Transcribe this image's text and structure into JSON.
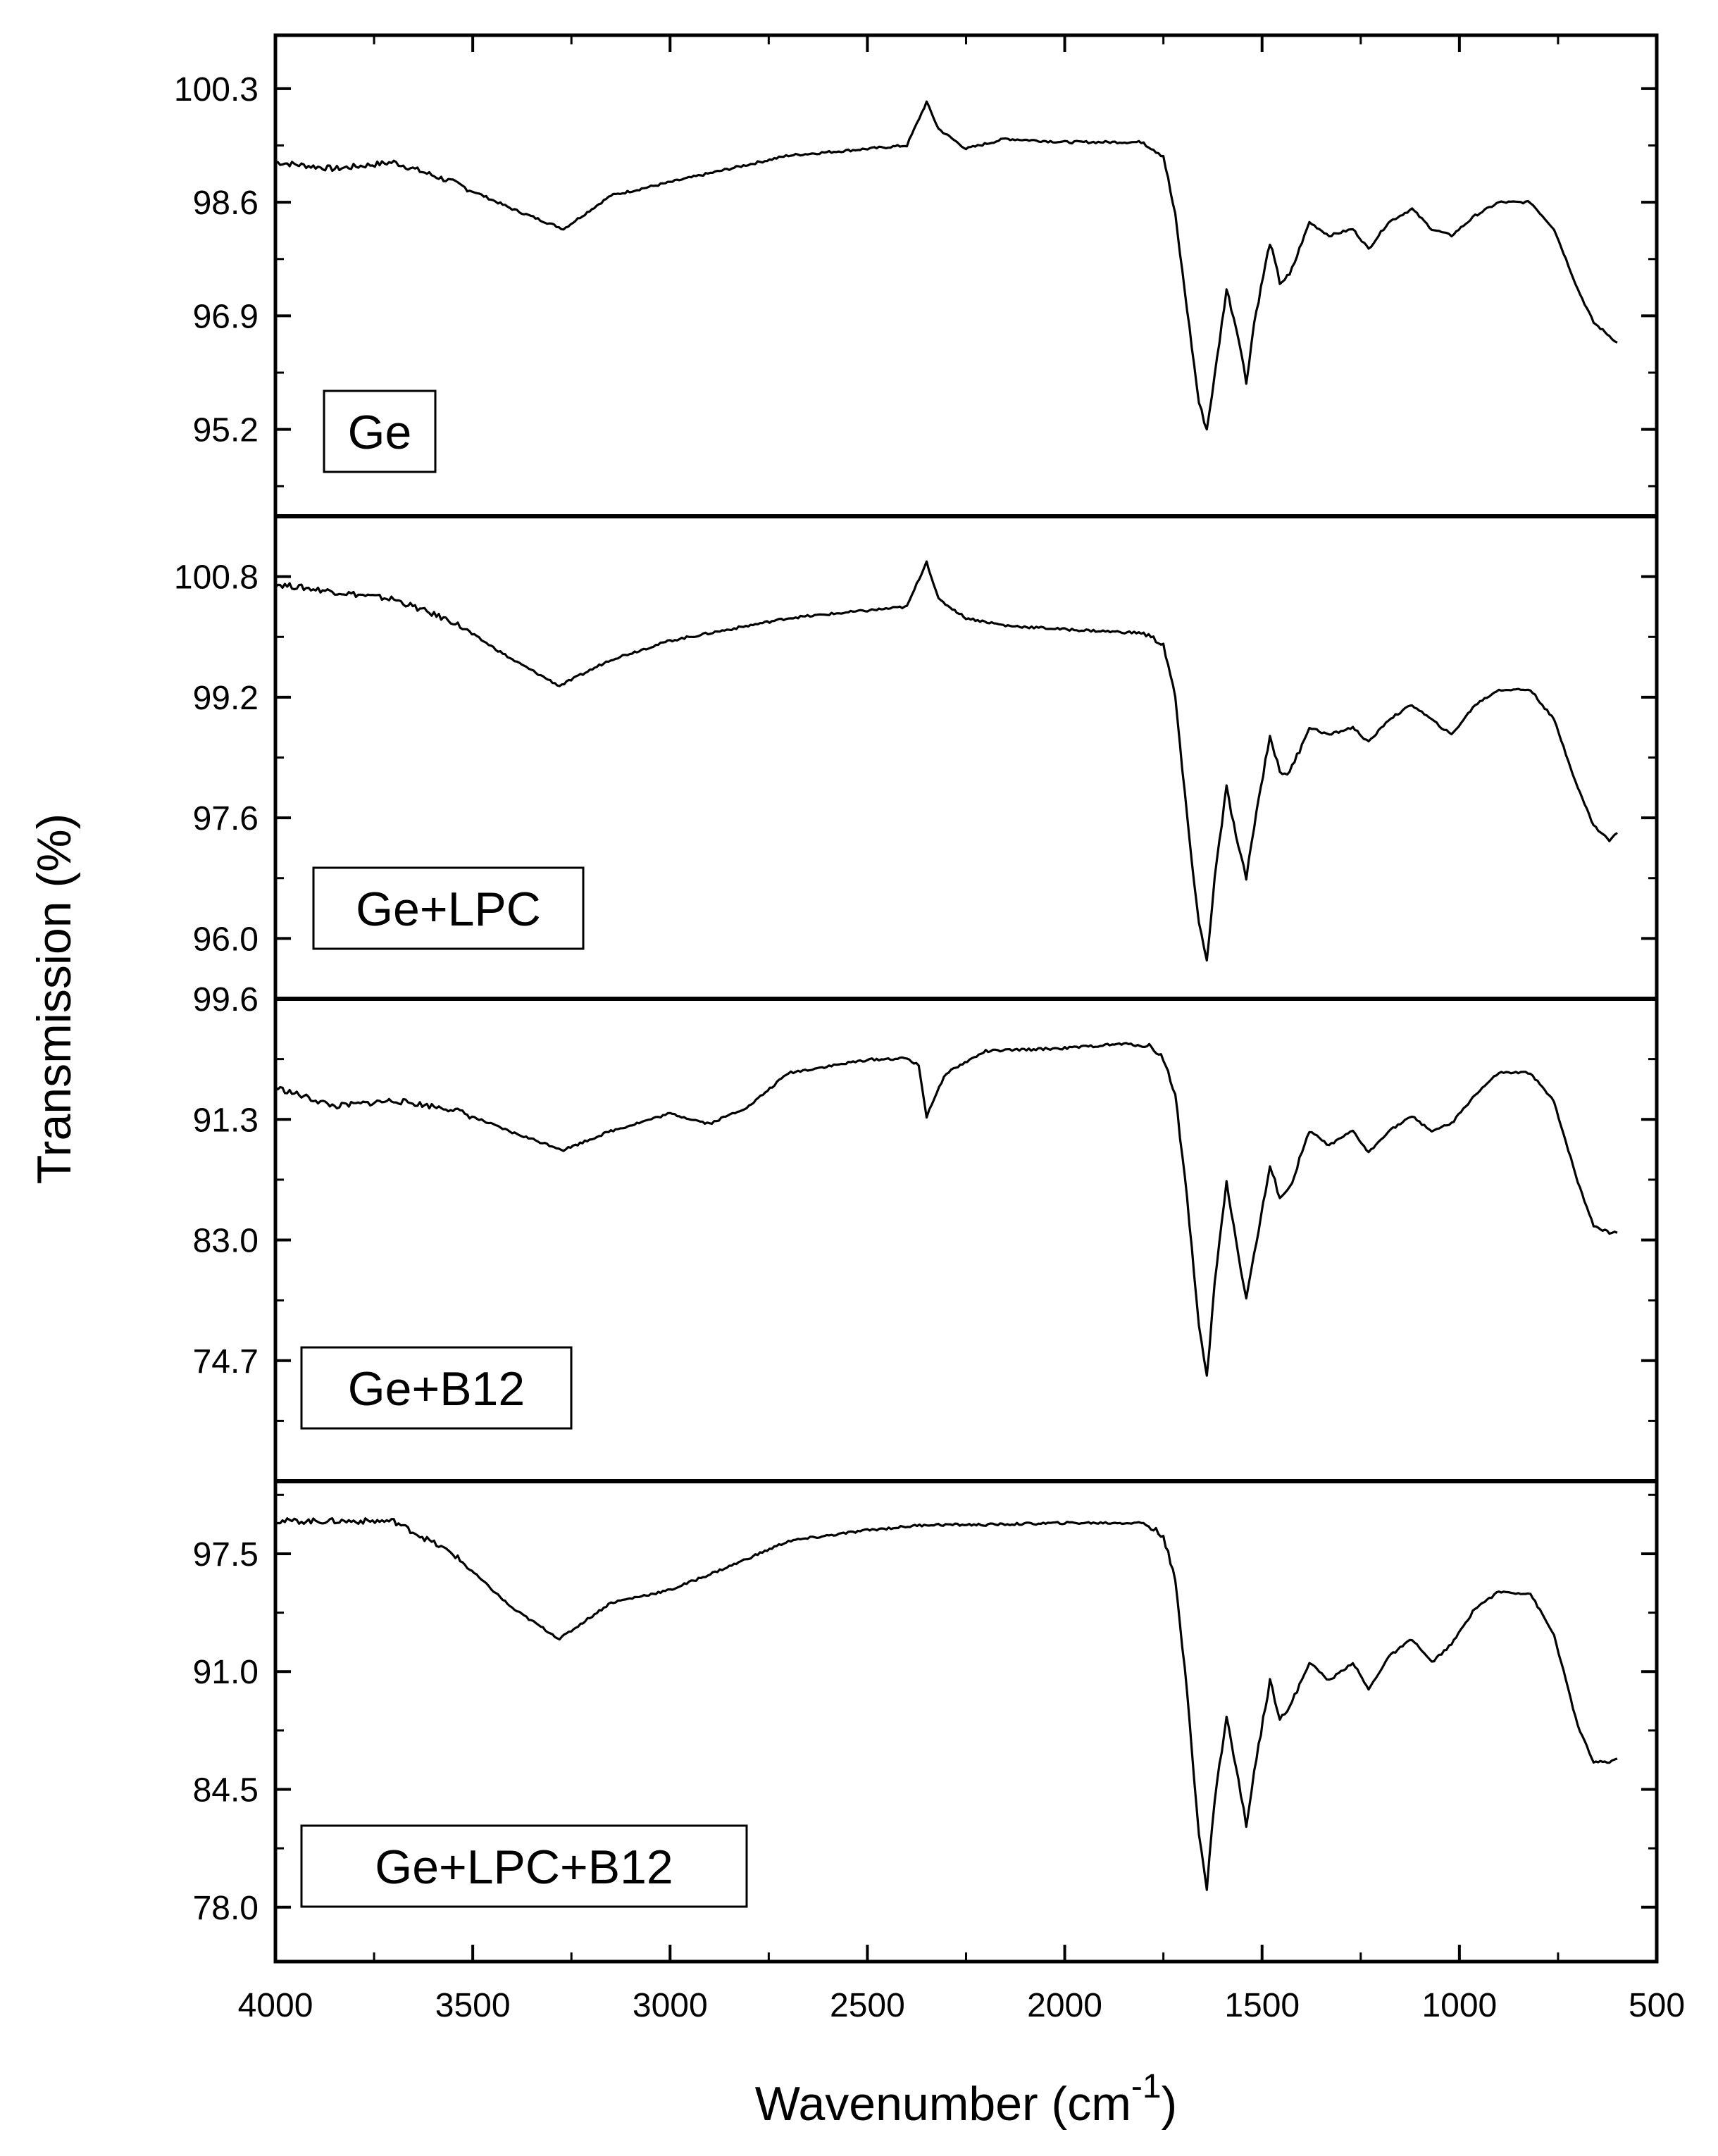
{
  "chart_data": {
    "type": "line",
    "xlabel": "Wavenumber (cm",
    "xlabel_sup": "-1",
    "xlabel_close": ")",
    "ylabel": "Transmission (%)",
    "xlim": [
      4000,
      500
    ],
    "x_ticks": [
      4000,
      3500,
      3000,
      2500,
      2000,
      1500,
      1000,
      500
    ],
    "grid": false,
    "panels": [
      {
        "label": "Ge",
        "ylim": [
          93.9,
          101.1
        ],
        "y_ticks": [
          "100.3",
          "98.6",
          "96.9",
          "95.2"
        ],
        "y_tick_values": [
          100.3,
          98.6,
          96.9,
          95.2
        ],
        "points": [
          [
            4000,
            99.2
          ],
          [
            3850,
            99.1
          ],
          [
            3700,
            99.2
          ],
          [
            3550,
            98.9
          ],
          [
            3400,
            98.5
          ],
          [
            3270,
            98.2
          ],
          [
            3150,
            98.7
          ],
          [
            3000,
            98.9
          ],
          [
            2850,
            99.1
          ],
          [
            2700,
            99.3
          ],
          [
            2500,
            99.4
          ],
          [
            2400,
            99.45
          ],
          [
            2350,
            100.1
          ],
          [
            2320,
            99.7
          ],
          [
            2250,
            99.4
          ],
          [
            2150,
            99.55
          ],
          [
            2000,
            99.5
          ],
          [
            1800,
            99.5
          ],
          [
            1750,
            99.3
          ],
          [
            1720,
            98.4
          ],
          [
            1690,
            97.0
          ],
          [
            1660,
            95.6
          ],
          [
            1640,
            95.2
          ],
          [
            1620,
            96.0
          ],
          [
            1590,
            97.3
          ],
          [
            1560,
            96.6
          ],
          [
            1540,
            95.9
          ],
          [
            1520,
            96.8
          ],
          [
            1480,
            98.0
          ],
          [
            1455,
            97.4
          ],
          [
            1430,
            97.5
          ],
          [
            1380,
            98.3
          ],
          [
            1330,
            98.1
          ],
          [
            1270,
            98.2
          ],
          [
            1230,
            97.9
          ],
          [
            1180,
            98.3
          ],
          [
            1120,
            98.5
          ],
          [
            1070,
            98.2
          ],
          [
            1020,
            98.1
          ],
          [
            960,
            98.4
          ],
          [
            900,
            98.6
          ],
          [
            820,
            98.6
          ],
          [
            760,
            98.2
          ],
          [
            700,
            97.3
          ],
          [
            660,
            96.8
          ],
          [
            620,
            96.6
          ],
          [
            600,
            96.5
          ]
        ]
      },
      {
        "label": "Ge+LPC",
        "ylim": [
          95.2,
          101.6
        ],
        "y_ticks": [
          "100.8",
          "99.2",
          "97.6",
          "96.0"
        ],
        "y_tick_values": [
          100.8,
          99.2,
          97.6,
          96.0
        ],
        "points": [
          [
            4000,
            100.7
          ],
          [
            3850,
            100.6
          ],
          [
            3700,
            100.5
          ],
          [
            3550,
            100.2
          ],
          [
            3400,
            99.7
          ],
          [
            3280,
            99.35
          ],
          [
            3150,
            99.7
          ],
          [
            3000,
            99.95
          ],
          [
            2850,
            100.1
          ],
          [
            2700,
            100.25
          ],
          [
            2500,
            100.35
          ],
          [
            2400,
            100.4
          ],
          [
            2350,
            101.0
          ],
          [
            2320,
            100.5
          ],
          [
            2250,
            100.25
          ],
          [
            2150,
            100.15
          ],
          [
            2000,
            100.1
          ],
          [
            1800,
            100.05
          ],
          [
            1750,
            99.9
          ],
          [
            1720,
            99.2
          ],
          [
            1690,
            97.6
          ],
          [
            1660,
            96.2
          ],
          [
            1640,
            95.7
          ],
          [
            1620,
            96.8
          ],
          [
            1590,
            98.0
          ],
          [
            1560,
            97.2
          ],
          [
            1540,
            96.8
          ],
          [
            1520,
            97.5
          ],
          [
            1480,
            98.7
          ],
          [
            1455,
            98.2
          ],
          [
            1430,
            98.2
          ],
          [
            1380,
            98.8
          ],
          [
            1330,
            98.7
          ],
          [
            1270,
            98.8
          ],
          [
            1230,
            98.6
          ],
          [
            1180,
            98.9
          ],
          [
            1120,
            99.1
          ],
          [
            1070,
            98.9
          ],
          [
            1020,
            98.7
          ],
          [
            960,
            99.1
          ],
          [
            900,
            99.3
          ],
          [
            820,
            99.3
          ],
          [
            760,
            98.9
          ],
          [
            700,
            98.0
          ],
          [
            660,
            97.5
          ],
          [
            620,
            97.3
          ],
          [
            600,
            97.4
          ]
        ]
      },
      {
        "label": "Ge+B12",
        "ylim": [
          66.4,
          99.6
        ],
        "y_ticks": [
          "99.6",
          "91.3",
          "83.0",
          "74.7"
        ],
        "y_tick_values": [
          99.6,
          91.3,
          83.0,
          74.7
        ],
        "points": [
          [
            4000,
            93.5
          ],
          [
            3850,
            92.2
          ],
          [
            3700,
            92.6
          ],
          [
            3550,
            92.0
          ],
          [
            3400,
            90.4
          ],
          [
            3270,
            89.2
          ],
          [
            3150,
            90.5
          ],
          [
            3000,
            91.7
          ],
          [
            2900,
            91.0
          ],
          [
            2800,
            92.2
          ],
          [
            2700,
            94.5
          ],
          [
            2500,
            95.4
          ],
          [
            2400,
            95.5
          ],
          [
            2370,
            95.0
          ],
          [
            2350,
            91.5
          ],
          [
            2330,
            92.8
          ],
          [
            2300,
            94.5
          ],
          [
            2200,
            96.0
          ],
          [
            2000,
            96.2
          ],
          [
            1850,
            96.5
          ],
          [
            1780,
            96.3
          ],
          [
            1750,
            95.5
          ],
          [
            1720,
            93.0
          ],
          [
            1690,
            86.0
          ],
          [
            1660,
            77.0
          ],
          [
            1640,
            73.5
          ],
          [
            1620,
            80.0
          ],
          [
            1590,
            87.0
          ],
          [
            1560,
            82.0
          ],
          [
            1540,
            79.0
          ],
          [
            1520,
            82.0
          ],
          [
            1480,
            88.0
          ],
          [
            1455,
            86.0
          ],
          [
            1430,
            86.5
          ],
          [
            1380,
            90.5
          ],
          [
            1330,
            89.5
          ],
          [
            1270,
            90.5
          ],
          [
            1230,
            89.0
          ],
          [
            1180,
            90.5
          ],
          [
            1120,
            91.5
          ],
          [
            1070,
            90.5
          ],
          [
            1020,
            91.0
          ],
          [
            960,
            93.0
          ],
          [
            900,
            94.5
          ],
          [
            820,
            94.5
          ],
          [
            760,
            92.5
          ],
          [
            700,
            87.0
          ],
          [
            660,
            84.0
          ],
          [
            620,
            83.5
          ],
          [
            600,
            83.5
          ]
        ]
      },
      {
        "label": "Ge+LPC+B12",
        "ylim": [
          75.0,
          101.5
        ],
        "y_ticks": [
          "97.5",
          "91.0",
          "84.5",
          "78.0"
        ],
        "y_tick_values": [
          97.5,
          91.0,
          84.5,
          78.0
        ],
        "points": [
          [
            4000,
            99.3
          ],
          [
            3850,
            99.3
          ],
          [
            3700,
            99.3
          ],
          [
            3550,
            97.5
          ],
          [
            3400,
            94.5
          ],
          [
            3280,
            92.8
          ],
          [
            3150,
            94.8
          ],
          [
            3000,
            95.5
          ],
          [
            2850,
            96.8
          ],
          [
            2700,
            98.2
          ],
          [
            2500,
            98.8
          ],
          [
            2350,
            99.1
          ],
          [
            2200,
            99.1
          ],
          [
            2000,
            99.2
          ],
          [
            1800,
            99.2
          ],
          [
            1750,
            98.5
          ],
          [
            1720,
            96.0
          ],
          [
            1690,
            90.0
          ],
          [
            1660,
            82.0
          ],
          [
            1640,
            79.0
          ],
          [
            1620,
            84.0
          ],
          [
            1590,
            88.5
          ],
          [
            1560,
            85.0
          ],
          [
            1540,
            82.5
          ],
          [
            1520,
            85.5
          ],
          [
            1480,
            90.5
          ],
          [
            1455,
            88.5
          ],
          [
            1430,
            89.0
          ],
          [
            1380,
            91.5
          ],
          [
            1330,
            90.5
          ],
          [
            1270,
            91.5
          ],
          [
            1230,
            90.0
          ],
          [
            1180,
            91.8
          ],
          [
            1120,
            92.8
          ],
          [
            1070,
            91.5
          ],
          [
            1020,
            92.5
          ],
          [
            960,
            94.5
          ],
          [
            900,
            95.4
          ],
          [
            820,
            95.3
          ],
          [
            760,
            93.0
          ],
          [
            700,
            88.0
          ],
          [
            660,
            86.0
          ],
          [
            620,
            86.0
          ],
          [
            600,
            86.2
          ]
        ]
      }
    ]
  }
}
